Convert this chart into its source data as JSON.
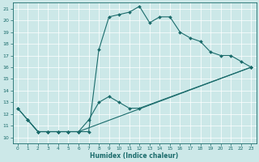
{
  "xlabel": "Humidex (Indice chaleur)",
  "xlim": [
    -0.5,
    23.5
  ],
  "ylim": [
    9.5,
    21.5
  ],
  "xticks": [
    0,
    1,
    2,
    3,
    4,
    5,
    6,
    7,
    8,
    9,
    10,
    11,
    12,
    13,
    14,
    15,
    16,
    17,
    18,
    19,
    20,
    21,
    22,
    23
  ],
  "yticks": [
    10,
    11,
    12,
    13,
    14,
    15,
    16,
    17,
    18,
    19,
    20,
    21
  ],
  "bg_color": "#cce8e8",
  "line_color": "#1a6b6b",
  "line1_x": [
    0,
    1,
    2,
    3,
    4,
    5,
    6,
    7,
    8,
    9,
    10,
    11,
    12,
    13,
    14,
    15,
    16,
    17,
    18,
    19,
    20,
    21,
    22,
    23
  ],
  "line1_y": [
    12.5,
    11.5,
    10.5,
    10.5,
    10.5,
    10.5,
    10.5,
    10.5,
    17.5,
    20.3,
    20.5,
    20.7,
    21.2,
    19.8,
    20.3,
    20.3,
    19.0,
    18.5,
    18.2,
    17.3,
    17.0,
    17.0,
    16.5,
    16.0
  ],
  "line2_x": [
    1,
    2,
    3,
    4,
    5,
    6,
    7,
    8,
    9,
    10,
    11,
    12,
    23
  ],
  "line2_y": [
    11.5,
    10.5,
    10.5,
    10.5,
    10.5,
    10.5,
    11.5,
    13.0,
    13.5,
    13.0,
    12.5,
    12.5,
    16.0
  ],
  "line3_x": [
    0,
    1,
    2,
    3,
    4,
    5,
    6,
    23
  ],
  "line3_y": [
    12.5,
    11.5,
    10.5,
    10.5,
    10.5,
    10.5,
    10.5,
    16.0
  ]
}
